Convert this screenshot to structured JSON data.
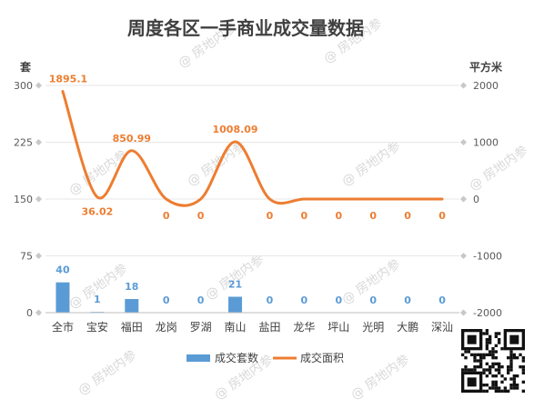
{
  "chart_data": {
    "type": "bar",
    "title": "周度各区一手商业成交量数据",
    "categories": [
      "全市",
      "宝安",
      "福田",
      "龙岗",
      "罗湖",
      "南山",
      "盐田",
      "龙华",
      "坪山",
      "光明",
      "大鹏",
      "深汕"
    ],
    "y_left": {
      "unit": "套",
      "range": [
        0,
        300
      ],
      "ticks": [
        0,
        75,
        150,
        225,
        300
      ]
    },
    "y_right": {
      "unit": "平方米",
      "range": [
        -2000,
        2000
      ],
      "ticks": [
        -2000,
        -1000,
        0,
        1000,
        2000
      ]
    },
    "series": [
      {
        "name": "成交套数",
        "type": "bar",
        "axis": "left",
        "color": "#5b9bd5",
        "values": [
          40,
          1,
          18,
          0,
          0,
          21,
          0,
          0,
          0,
          0,
          0,
          0
        ],
        "labels": [
          "40",
          "1",
          "18",
          "0",
          "0",
          "21",
          "0",
          "0",
          "0",
          "0",
          "0",
          "0"
        ]
      },
      {
        "name": "成交面积",
        "type": "line",
        "axis": "right",
        "color": "#ed7d31",
        "values": [
          1895.1,
          36.02,
          850.99,
          0,
          0,
          1008.09,
          0,
          0,
          0,
          0,
          0,
          0
        ],
        "labels": [
          "1895.1",
          "36.02",
          "850.99",
          "0",
          "0",
          "1008.09",
          "0",
          "0",
          "0",
          "0",
          "0",
          "0"
        ]
      }
    ],
    "legend": "bottom",
    "grid": true
  },
  "watermark": "@ 房地内参"
}
